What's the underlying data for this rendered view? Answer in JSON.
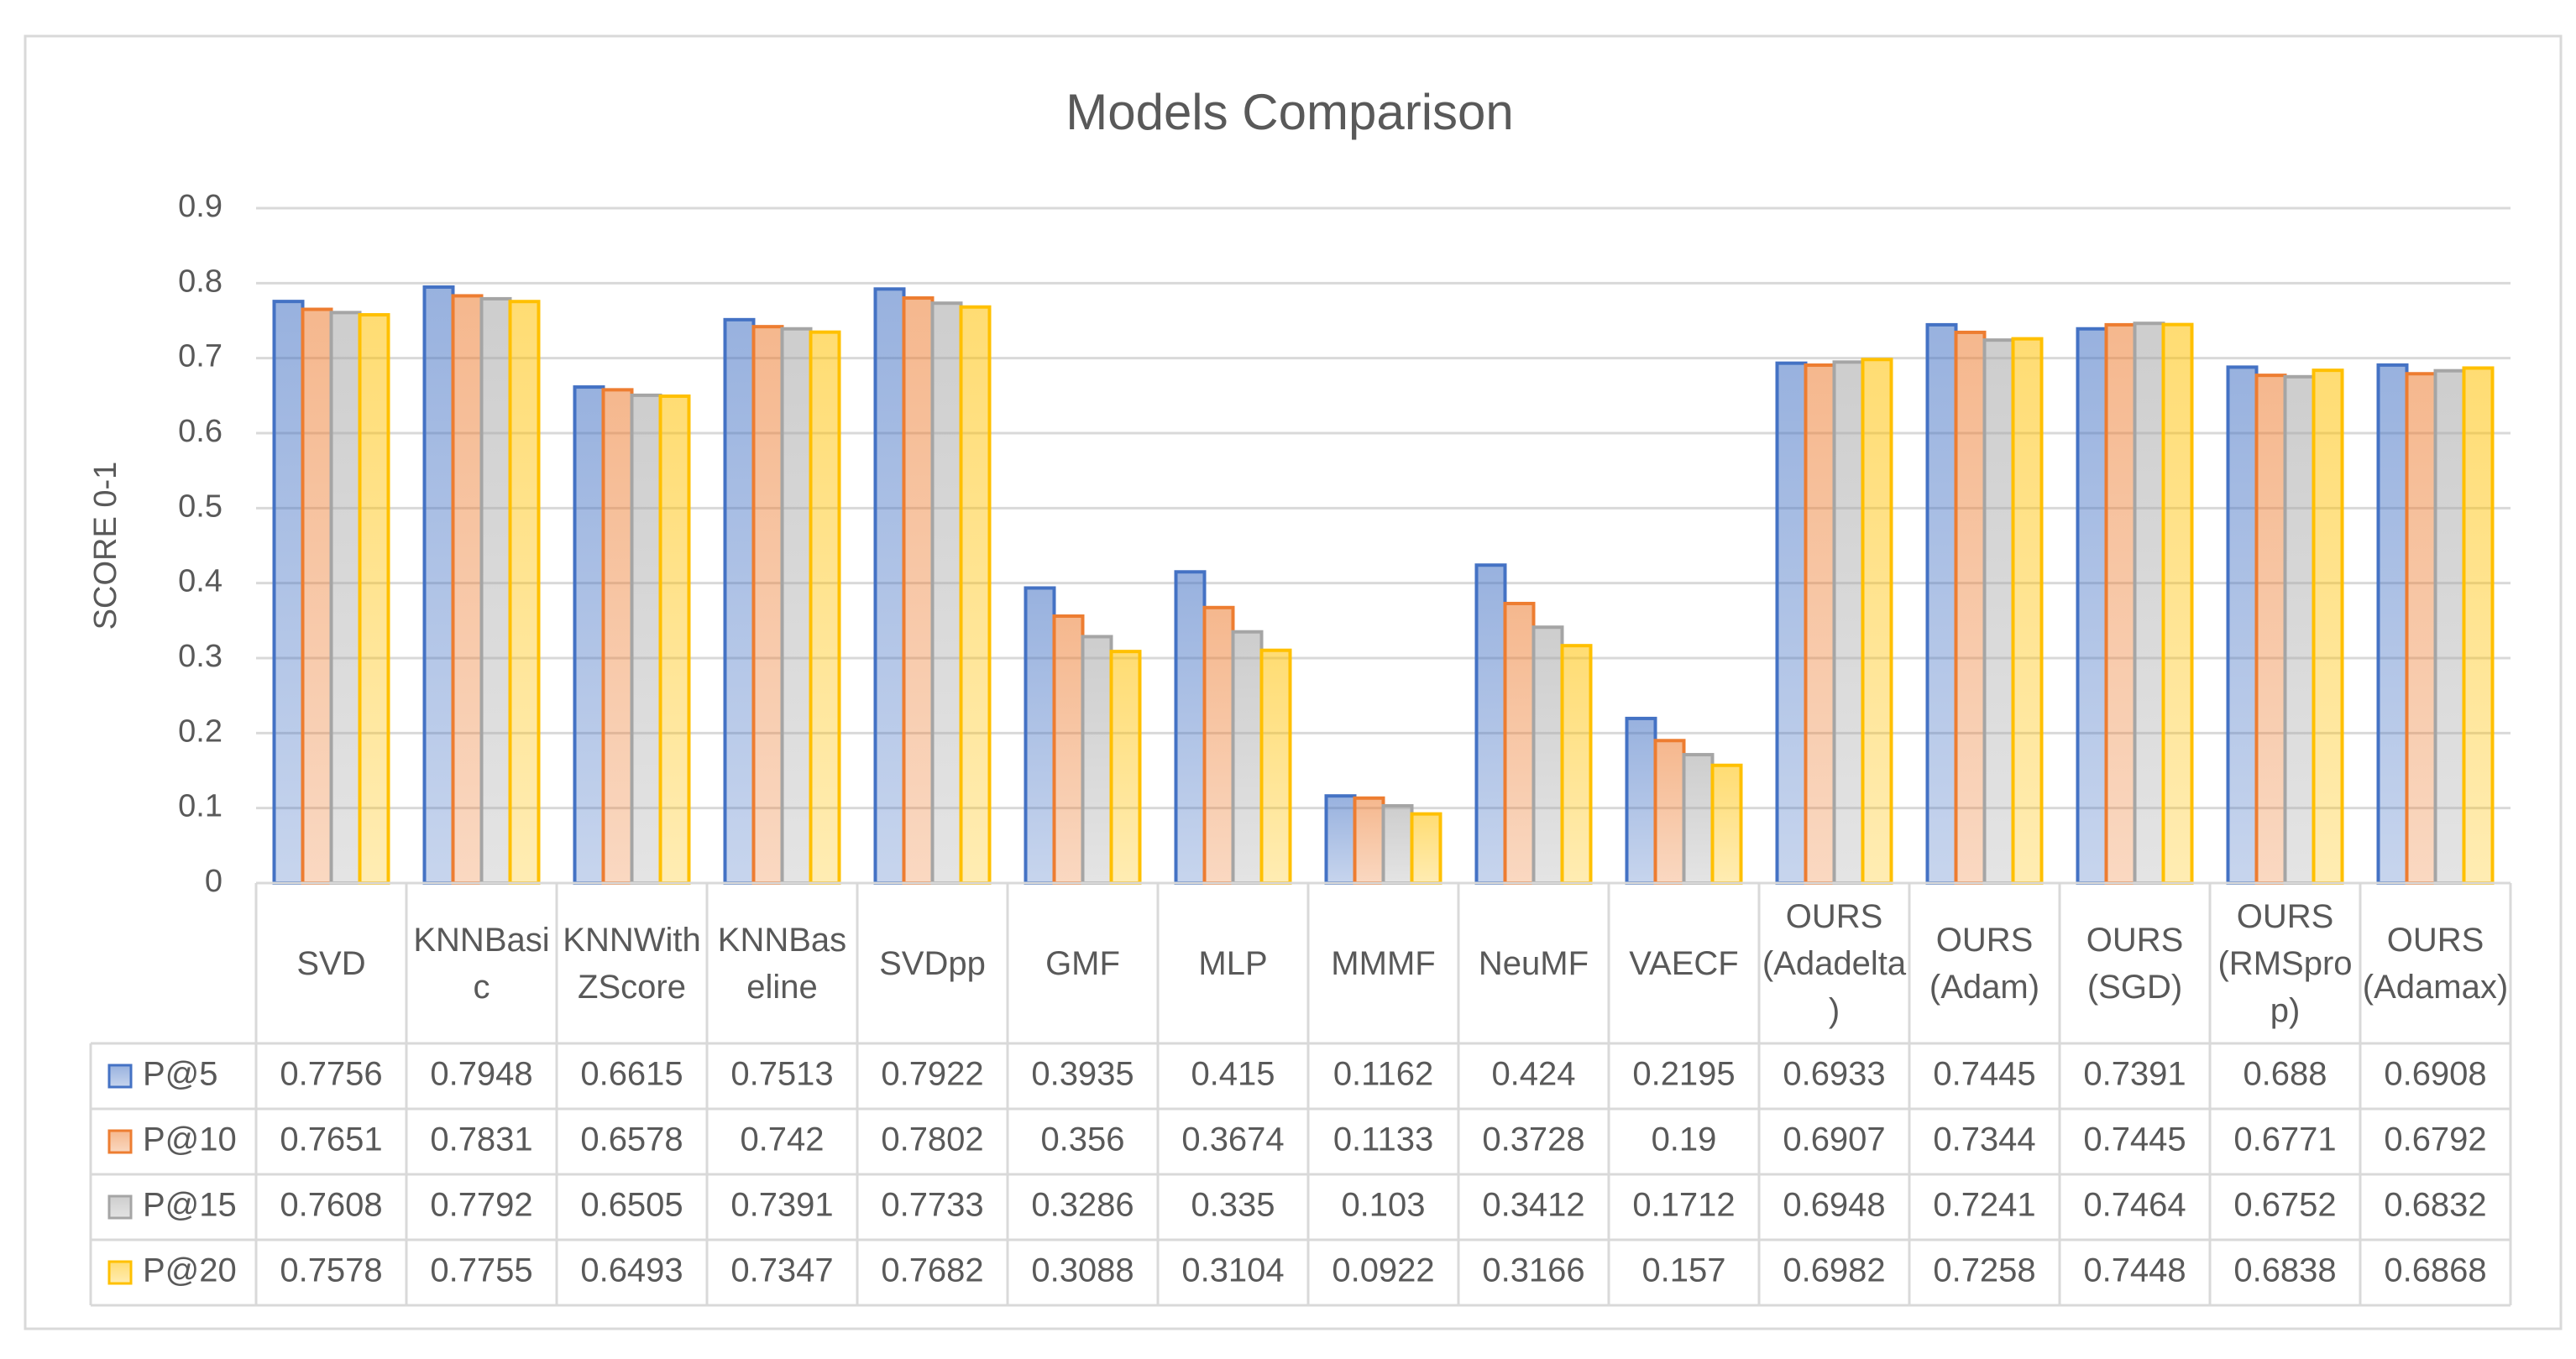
{
  "chart_data": {
    "type": "bar",
    "title": "Models Comparison",
    "y_label": "SCORE 0-1",
    "categories": [
      "SVD",
      "KNNBasic",
      "KNNWithZScore",
      "KNNBaseline",
      "SVDpp",
      "GMF",
      "MLP",
      "MMMF",
      "NeuMF",
      "VAECF",
      "OURS (Adadelta)",
      "OURS (Adam)",
      "OURS (SGD)",
      "OURS (RMSprop)",
      "OURS (Adamax)"
    ],
    "series": [
      {
        "name": "P@5",
        "color": "#4472c4",
        "values": [
          0.7756,
          0.7948,
          0.6615,
          0.7513,
          0.7922,
          0.3935,
          0.415,
          0.1162,
          0.424,
          0.2195,
          0.6933,
          0.7445,
          0.7391,
          0.688,
          0.6908
        ]
      },
      {
        "name": "P@10",
        "color": "#ed7d31",
        "values": [
          0.7651,
          0.7831,
          0.6578,
          0.742,
          0.7802,
          0.356,
          0.3674,
          0.1133,
          0.3728,
          0.19,
          0.6907,
          0.7344,
          0.7445,
          0.6771,
          0.6792
        ]
      },
      {
        "name": "P@15",
        "color": "#a5a5a5",
        "values": [
          0.7608,
          0.7792,
          0.6505,
          0.7391,
          0.7733,
          0.3286,
          0.335,
          0.103,
          0.3412,
          0.1712,
          0.6948,
          0.7241,
          0.7464,
          0.6752,
          0.6832
        ]
      },
      {
        "name": "P@20",
        "color": "#ffc000",
        "values": [
          0.7578,
          0.7755,
          0.6493,
          0.7347,
          0.7682,
          0.3088,
          0.3104,
          0.0922,
          0.3166,
          0.157,
          0.6982,
          0.7258,
          0.7448,
          0.6838,
          0.6868
        ]
      }
    ],
    "ylim": [
      0,
      0.9
    ],
    "yticks": [
      0,
      0.1,
      0.2,
      0.3,
      0.4,
      0.5,
      0.6,
      0.7,
      0.8,
      0.9
    ],
    "grid": true,
    "data_table": true
  }
}
